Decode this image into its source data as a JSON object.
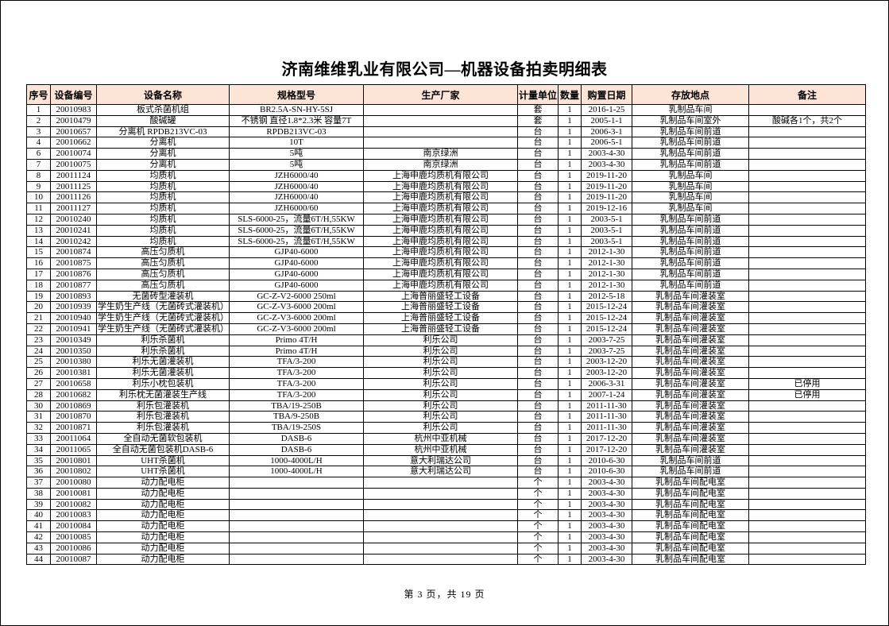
{
  "page": {
    "title": "济南维维乳业有限公司—机器设备拍卖明细表",
    "footer": "第 3 页，共 19 页"
  },
  "colors": {
    "header_bg": "#FCE4D6",
    "border": "#000000",
    "text": "#000000"
  },
  "table": {
    "headers": [
      "序号",
      "设备编号",
      "设备名称",
      "规格型号",
      "生产厂家",
      "计量单位",
      "数量",
      "购置日期",
      "存放地点",
      "备注"
    ],
    "rows": [
      [
        "1",
        "20010983",
        "板式杀菌机组",
        "BR2.5A-SN-HY-5SJ",
        "",
        "套",
        "1",
        "2016-1-25",
        "乳制品车间",
        ""
      ],
      [
        "2",
        "20010479",
        "酸碱罐",
        "不锈钢 直径1.8*2.3米 容量7T",
        "",
        "套",
        "1",
        "2005-1-1",
        "乳制品车间室外",
        "酸碱各1个，共2个"
      ],
      [
        "3",
        "20010657",
        "分离机 RPDB213VC-03",
        "RPDB213VC-03",
        "",
        "台",
        "1",
        "2006-3-1",
        "乳制品车间前道",
        ""
      ],
      [
        "4",
        "20010662",
        "分离机",
        "10T",
        "",
        "台",
        "1",
        "2006-5-1",
        "乳制品车间前道",
        ""
      ],
      [
        "6",
        "20010074",
        "分离机",
        "5吨",
        "南京绿洲",
        "台",
        "1",
        "2003-4-30",
        "乳制品车间前道",
        ""
      ],
      [
        "7",
        "20010075",
        "分离机",
        "5吨",
        "南京绿洲",
        "台",
        "1",
        "2003-4-30",
        "乳制品车间前道",
        ""
      ],
      [
        "8",
        "20011124",
        "均质机",
        "JZH6000/40",
        "上海申鹿均质机有限公司",
        "台",
        "1",
        "2019-11-20",
        "乳制品车间",
        ""
      ],
      [
        "9",
        "20011125",
        "均质机",
        "JZH6000/40",
        "上海申鹿均质机有限公司",
        "台",
        "1",
        "2019-11-20",
        "乳制品车间",
        ""
      ],
      [
        "10",
        "20011126",
        "均质机",
        "JZH6000/40",
        "上海申鹿均质机有限公司",
        "台",
        "1",
        "2019-11-20",
        "乳制品车间",
        ""
      ],
      [
        "11",
        "20011127",
        "均质机",
        "JZH6000/60",
        "上海申鹿均质机有限公司",
        "台",
        "1",
        "2019-12-16",
        "乳制品车间",
        ""
      ],
      [
        "12",
        "20010240",
        "均质机",
        "SLS-6000-25，流量6T/H,55KW",
        "上海申鹿均质机有限公司",
        "台",
        "1",
        "2003-5-1",
        "乳制品车间前道",
        ""
      ],
      [
        "13",
        "20010241",
        "均质机",
        "SLS-6000-25，流量6T/H,55KW",
        "上海申鹿均质机有限公司",
        "台",
        "1",
        "2003-5-1",
        "乳制品车间前道",
        ""
      ],
      [
        "14",
        "20010242",
        "均质机",
        "SLS-6000-25，流量6T/H,55KW",
        "上海申鹿均质机有限公司",
        "台",
        "1",
        "2003-5-1",
        "乳制品车间前道",
        ""
      ],
      [
        "15",
        "20010874",
        "高压匀质机",
        "GJP40-6000",
        "上海申鹿均质机有限公司",
        "台",
        "1",
        "2012-1-30",
        "乳制品车间前道",
        ""
      ],
      [
        "16",
        "20010875",
        "高压匀质机",
        "GJP40-6000",
        "上海申鹿均质机有限公司",
        "台",
        "1",
        "2012-1-30",
        "乳制品车间前道",
        ""
      ],
      [
        "17",
        "20010876",
        "高压匀质机",
        "GJP40-6000",
        "上海申鹿均质机有限公司",
        "台",
        "1",
        "2012-1-30",
        "乳制品车间前道",
        ""
      ],
      [
        "18",
        "20010877",
        "高压匀质机",
        "GJP40-6000",
        "上海申鹿均质机有限公司",
        "台",
        "1",
        "2012-1-30",
        "乳制品车间前道",
        ""
      ],
      [
        "19",
        "20010893",
        "无菌砖型灌装机",
        "GC-Z-V2-6000 250ml",
        "上海普丽盛轻工设备",
        "台",
        "1",
        "2012-5-18",
        "乳制品车间灌装室",
        ""
      ],
      [
        "20",
        "20010939",
        "学生奶生产线（无菌砖式灌装机）",
        "GC-Z-V3-6000 200ml",
        "上海普丽盛轻工设备",
        "台",
        "1",
        "2015-12-24",
        "乳制品车间灌装室",
        ""
      ],
      [
        "21",
        "20010940",
        "学生奶生产线（无菌砖式灌装机）",
        "GC-Z-V3-6000 200ml",
        "上海普丽盛轻工设备",
        "台",
        "1",
        "2015-12-24",
        "乳制品车间灌装室",
        ""
      ],
      [
        "22",
        "20010941",
        "学生奶生产线（无菌砖式灌装机）",
        "GC-Z-V3-6000 200ml",
        "上海普丽盛轻工设备",
        "台",
        "1",
        "2015-12-24",
        "乳制品车间灌装室",
        ""
      ],
      [
        "23",
        "20010349",
        "利乐杀菌机",
        "Primo 4T/H",
        "利乐公司",
        "台",
        "1",
        "2003-7-25",
        "乳制品车间灌装室",
        ""
      ],
      [
        "24",
        "20010350",
        "利乐杀菌机",
        "Primo 4T/H",
        "利乐公司",
        "台",
        "1",
        "2003-7-25",
        "乳制品车间灌装室",
        ""
      ],
      [
        "25",
        "20010380",
        "利乐无菌灌装机",
        "TFA/3-200",
        "利乐公司",
        "台",
        "1",
        "2003-12-20",
        "乳制品车间灌装室",
        ""
      ],
      [
        "26",
        "20010381",
        "利乐无菌灌装机",
        "TFA/3-200",
        "利乐公司",
        "台",
        "1",
        "2003-12-20",
        "乳制品车间灌装室",
        ""
      ],
      [
        "27",
        "20010658",
        "利乐小枕包装机",
        "TFA/3-200",
        "利乐公司",
        "台",
        "1",
        "2006-3-31",
        "乳制品车间灌装室",
        "已停用"
      ],
      [
        "28",
        "20010682",
        "利乐枕无菌灌装生产线",
        "TFA/3-200",
        "利乐公司",
        "台",
        "1",
        "2007-1-24",
        "乳制品车间灌装室",
        "已停用"
      ],
      [
        "30",
        "20010869",
        "利乐包灌装机",
        "TBA/19-250B",
        "利乐公司",
        "台",
        "1",
        "2011-11-30",
        "乳制品车间灌装室",
        ""
      ],
      [
        "31",
        "20010870",
        "利乐包灌装机",
        "TBA/9-250B",
        "利乐公司",
        "台",
        "1",
        "2011-11-30",
        "乳制品车间灌装室",
        ""
      ],
      [
        "32",
        "20010871",
        "利乐包灌装机",
        "TBA/19-250S",
        "利乐公司",
        "台",
        "1",
        "2011-11-30",
        "乳制品车间灌装室",
        ""
      ],
      [
        "33",
        "20011064",
        "全自动无菌软包装机",
        "DASB-6",
        "杭州中亚机械",
        "台",
        "1",
        "2017-12-20",
        "乳制品车间灌装室",
        ""
      ],
      [
        "34",
        "20011065",
        "全自动无菌包装机DASB-6",
        "DASB-6",
        "杭州中亚机械",
        "台",
        "1",
        "2017-12-20",
        "乳制品车间灌装室",
        ""
      ],
      [
        "35",
        "20010801",
        "UHT杀菌机",
        "1000-4000L/H",
        "意大利瑞达公司",
        "台",
        "1",
        "2010-6-30",
        "乳制品车间前道",
        ""
      ],
      [
        "36",
        "20010802",
        "UHT杀菌机",
        "1000-4000L/H",
        "意大利瑞达公司",
        "台",
        "1",
        "2010-6-30",
        "乳制品车间前道",
        ""
      ],
      [
        "37",
        "20010080",
        "动力配电柜",
        "",
        "",
        "个",
        "1",
        "2003-4-30",
        "乳制品车间配电室",
        ""
      ],
      [
        "38",
        "20010081",
        "动力配电柜",
        "",
        "",
        "个",
        "1",
        "2003-4-30",
        "乳制品车间配电室",
        ""
      ],
      [
        "39",
        "20010082",
        "动力配电柜",
        "",
        "",
        "个",
        "1",
        "2003-4-30",
        "乳制品车间配电室",
        ""
      ],
      [
        "40",
        "20010083",
        "动力配电柜",
        "",
        "",
        "个",
        "1",
        "2003-4-30",
        "乳制品车间配电室",
        ""
      ],
      [
        "41",
        "20010084",
        "动力配电柜",
        "",
        "",
        "个",
        "1",
        "2003-4-30",
        "乳制品车间配电室",
        ""
      ],
      [
        "42",
        "20010085",
        "动力配电柜",
        "",
        "",
        "个",
        "1",
        "2003-4-30",
        "乳制品车间配电室",
        ""
      ],
      [
        "43",
        "20010086",
        "动力配电柜",
        "",
        "",
        "个",
        "1",
        "2003-4-30",
        "乳制品车间配电室",
        ""
      ],
      [
        "44",
        "20010087",
        "动力配电柜",
        "",
        "",
        "个",
        "1",
        "2003-4-30",
        "乳制品车间配电室",
        ""
      ]
    ]
  }
}
